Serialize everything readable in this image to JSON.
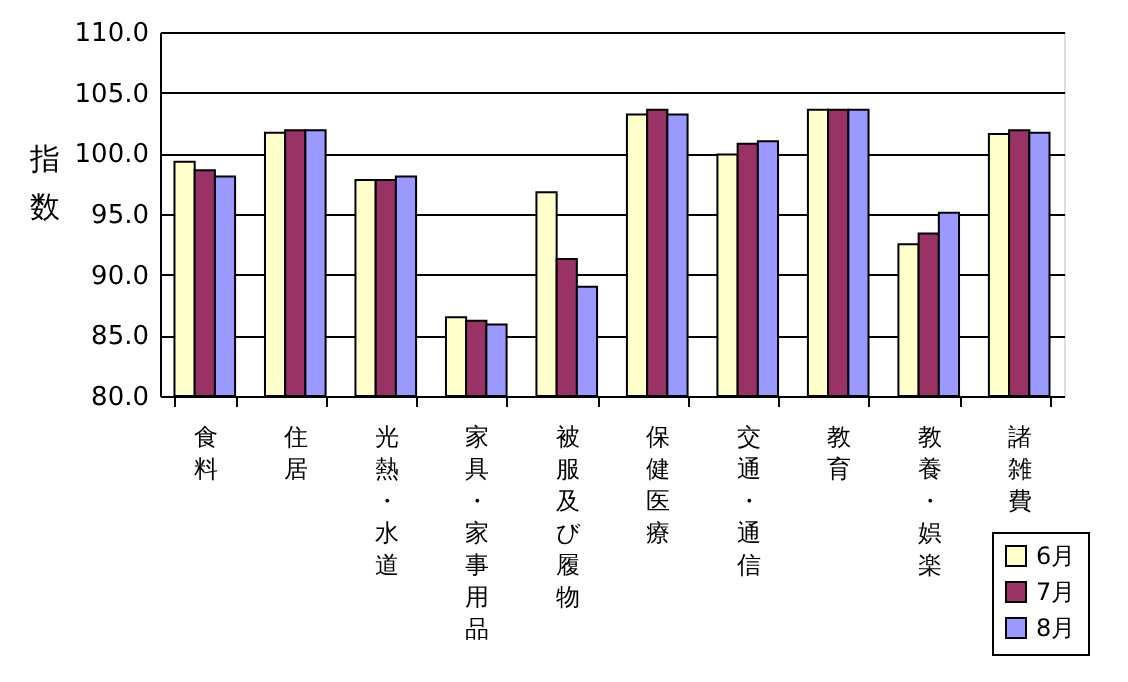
{
  "chart_data": {
    "type": "bar",
    "ylabel": "指数",
    "categories": [
      "食料",
      "住居",
      "光熱・水道",
      "家具・家事用品",
      "被服及び履物",
      "保健医療",
      "交通・通信",
      "教育",
      "教養・娯楽",
      "諸雑費"
    ],
    "series": [
      {
        "name": "6月",
        "color": "#ffffcc",
        "values": [
          99.3,
          101.7,
          97.8,
          86.5,
          96.8,
          103.2,
          99.9,
          103.6,
          92.5,
          101.6
        ]
      },
      {
        "name": "7月",
        "color": "#993366",
        "values": [
          98.6,
          101.9,
          97.8,
          86.2,
          91.3,
          103.6,
          100.8,
          103.6,
          93.4,
          101.9
        ]
      },
      {
        "name": "8月",
        "color": "#9999ff",
        "values": [
          98.1,
          101.9,
          98.1,
          85.9,
          89.0,
          103.2,
          101.0,
          103.6,
          95.1,
          101.7
        ]
      }
    ],
    "ylim": [
      80,
      110
    ],
    "yticks": [
      {
        "value": 80,
        "label": "80.0"
      },
      {
        "value": 85,
        "label": "85.0"
      },
      {
        "value": 90,
        "label": "90.0"
      },
      {
        "value": 95,
        "label": "95.0"
      },
      {
        "value": 100,
        "label": "100.0"
      },
      {
        "value": 105,
        "label": "105.0"
      },
      {
        "value": 110,
        "label": "110.0"
      }
    ],
    "grid": "y",
    "legend": "bottom right"
  }
}
